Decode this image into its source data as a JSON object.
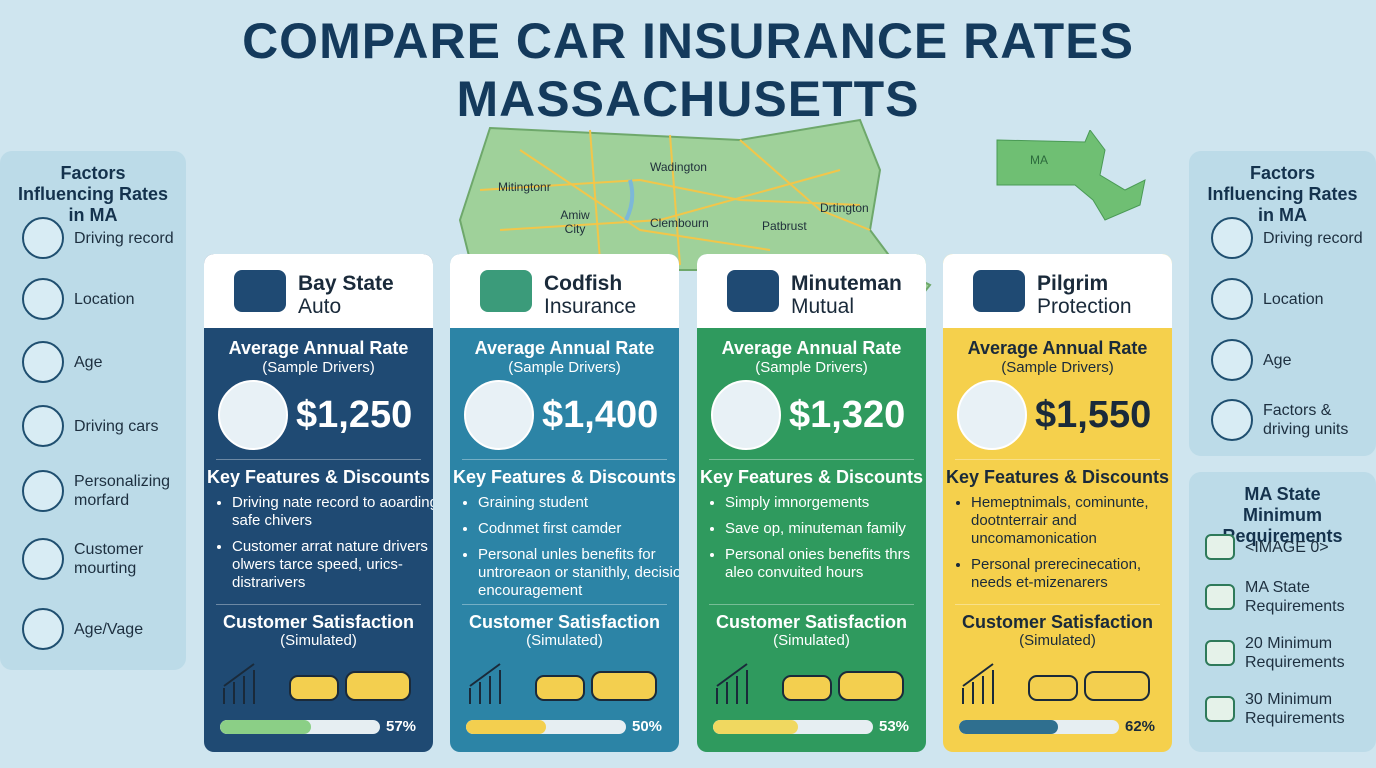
{
  "title": [
    "COMPARE CAR INSURANCE RATES",
    "MASSACHUSETTS"
  ],
  "map": {
    "labels": [
      "Mitingtonr",
      "Wadington",
      "Amiw City",
      "Clembourn",
      "Patbrust",
      "Drtington"
    ],
    "inset_label": "MA"
  },
  "left_panel": {
    "title": "Factors Influencing Rates in MA",
    "items": [
      "Driving record",
      "Location",
      "Age",
      "Driving cars",
      "Personalizing morfard",
      "Customer mourting",
      "Age/Vage"
    ]
  },
  "right_panel": {
    "title": "Factors Influencing Rates in MA",
    "items": [
      "Driving record",
      "Location",
      "Age",
      "Factors & driving units"
    ]
  },
  "requirements_panel": {
    "title": "MA State Minimum Requirements",
    "items": [
      "<IMAGE 0>",
      "MA State Requirements",
      "20 Minimum Requirements",
      "30 Minimum Requirements"
    ]
  },
  "cards": [
    {
      "name": [
        "Bay State",
        "Auto"
      ],
      "rate_heading": "Average Annual Rate",
      "rate_sub": "(Sample Drivers)",
      "rate": "$1,250",
      "features_heading": "Key Features & Discounts",
      "features": [
        "Driving nate record to aoarding safe chivers",
        "Customer arrat nature drivers olwers tarce speed, urics-distrarivers"
      ],
      "satisfaction_heading": "Customer Satisfaction",
      "satisfaction_sub": "(Simulated)",
      "satisfaction": {
        "value": 57,
        "label": "57%"
      }
    },
    {
      "name": [
        "Codfish",
        "Insurance"
      ],
      "rate_heading": "Average Annual Rate",
      "rate_sub": "(Sample Drivers)",
      "rate": "$1,400",
      "features_heading": "Key Features & Discounts",
      "features": [
        "Graining student",
        "Codnmet first camder",
        "Personal unles benefits for untroreaon or stanithly, decision encouragement"
      ],
      "satisfaction_heading": "Customer Satisfaction",
      "satisfaction_sub": "(Simulated)",
      "satisfaction": {
        "value": 50,
        "label": "50%"
      }
    },
    {
      "name": [
        "Minuteman",
        "Mutual"
      ],
      "rate_heading": "Average Annual Rate",
      "rate_sub": "(Sample Drivers)",
      "rate": "$1,320",
      "features_heading": "Key Features & Discounts",
      "features": [
        "Simply imnorgements",
        "Save op, minuteman family",
        "Personal onies benefits thrs aleo convuited hours"
      ],
      "satisfaction_heading": "Customer Satisfaction",
      "satisfaction_sub": "(Simulated)",
      "satisfaction": {
        "value": 53,
        "label": "53%"
      }
    },
    {
      "name": [
        "Pilgrim",
        "Protection"
      ],
      "rate_heading": "Average Annual Rate",
      "rate_sub": "(Sample Drivers)",
      "rate": "$1,550",
      "features_heading": "Key Features & Discounts",
      "features": [
        "Hemeptnimals, cominunte, dootnterrair and uncomamonication",
        "Personal prerecinecation, needs et-mizenarers"
      ],
      "satisfaction_heading": "Customer Satisfaction",
      "satisfaction_sub": "(Simulated)",
      "satisfaction": {
        "value": 62,
        "label": "62%"
      }
    }
  ]
}
